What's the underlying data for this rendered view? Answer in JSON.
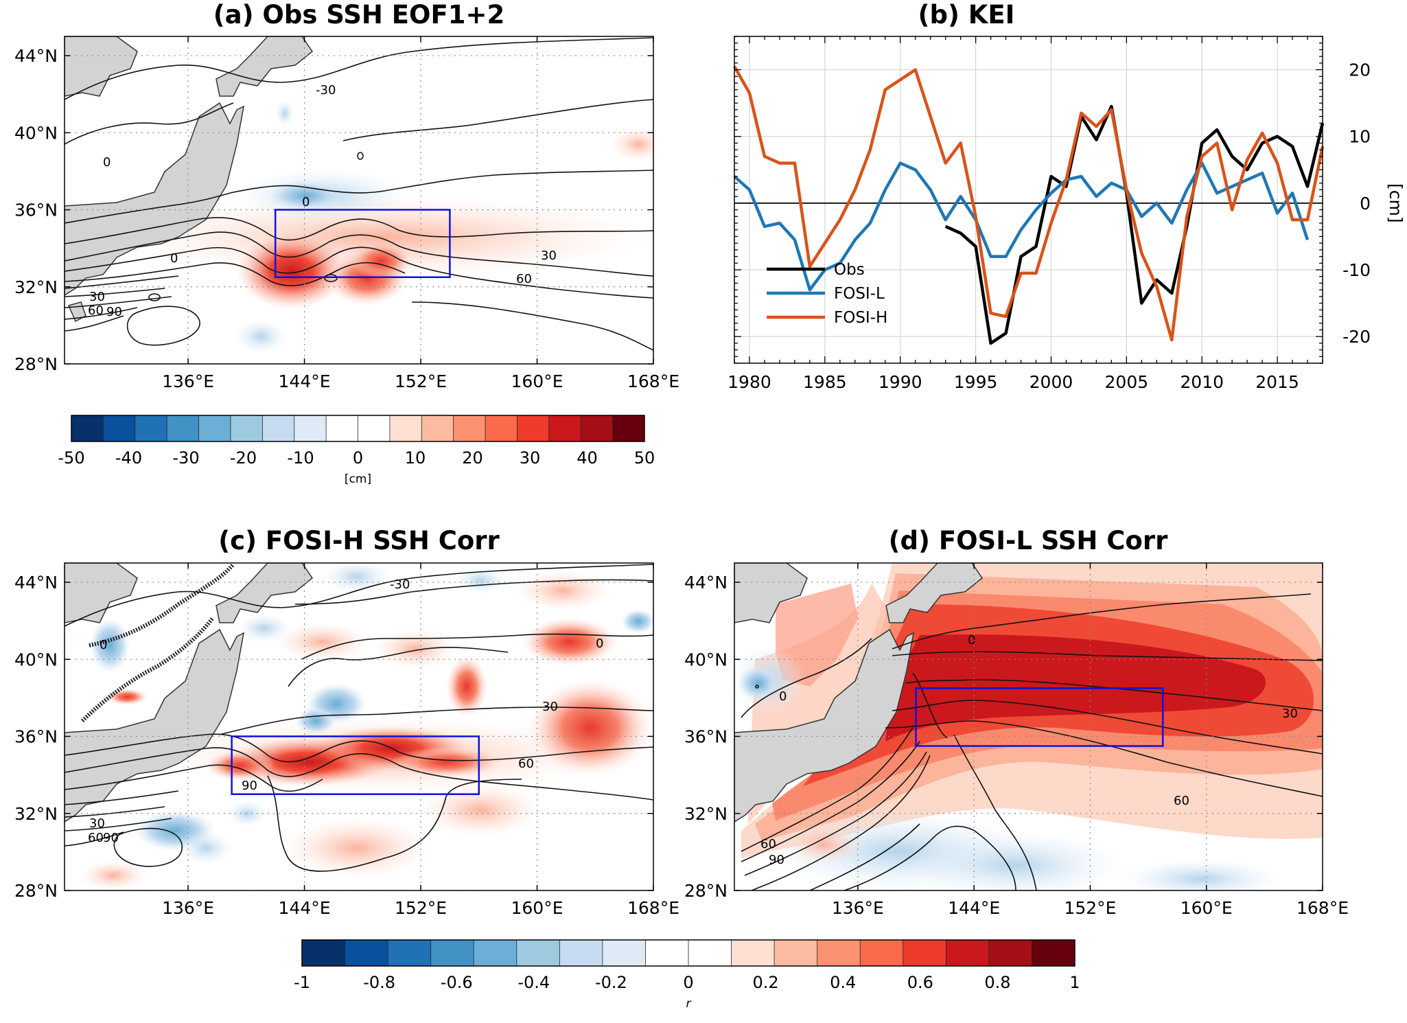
{
  "chart_data": [
    {
      "id": "a",
      "type": "heatmap",
      "title": "(a) Obs SSH EOF1+2",
      "x_ticks": [
        "136°E",
        "144°E",
        "152°E",
        "160°E",
        "168°E"
      ],
      "x_tick_values": [
        136,
        144,
        152,
        160,
        168
      ],
      "y_ticks": [
        "44°N",
        "40°N",
        "36°N",
        "32°N",
        "28°N"
      ],
      "y_tick_values": [
        44,
        40,
        36,
        32,
        28
      ],
      "xlim": [
        127.5,
        168
      ],
      "ylim": [
        28,
        45
      ],
      "contour_labels": [
        "-30",
        "0",
        "0",
        "0",
        "30",
        "60",
        "30",
        "60",
        "90"
      ],
      "box": {
        "lon": [
          142,
          154
        ],
        "lat": [
          32.5,
          36
        ]
      },
      "colorbar": {
        "ticks": [
          "-50",
          "-40",
          "-30",
          "-20",
          "-10",
          "0",
          "10",
          "20",
          "30",
          "40",
          "50"
        ],
        "label": "[cm]",
        "range": [
          -50,
          50
        ]
      }
    },
    {
      "id": "b",
      "type": "line",
      "title": "(b) KEI",
      "x_ticks": [
        "1980",
        "1985",
        "1990",
        "1995",
        "2000",
        "2005",
        "2010",
        "2015"
      ],
      "y_ticks": [
        "20",
        "10",
        "0",
        "-10",
        "-20"
      ],
      "ylabel": "[cm]",
      "xlim": [
        1979,
        2018
      ],
      "ylim": [
        -24,
        25
      ],
      "grid": true,
      "legend_position": "lower-left",
      "series": [
        {
          "name": "Obs",
          "color": "#000000",
          "x": [
            1993,
            1994,
            1995,
            1996,
            1997,
            1998,
            1999,
            2000,
            2001,
            2002,
            2003,
            2004,
            2005,
            2006,
            2007,
            2008,
            2009,
            2010,
            2011,
            2012,
            2013,
            2014,
            2015,
            2016,
            2017,
            2018
          ],
          "y": [
            -3.5,
            -4.5,
            -6.5,
            -21,
            -19.5,
            -8,
            -6.5,
            4,
            2.5,
            13,
            9.5,
            14.5,
            1.5,
            -15,
            -11.5,
            -13.5,
            -3.5,
            9,
            11,
            7,
            5,
            9,
            10,
            8.5,
            2.5,
            12
          ]
        },
        {
          "name": "FOSI-L",
          "color": "#1f77b4",
          "x": [
            1979,
            1980,
            1981,
            1982,
            1983,
            1984,
            1985,
            1986,
            1987,
            1988,
            1989,
            1990,
            1991,
            1992,
            1993,
            1994,
            1995,
            1996,
            1997,
            1998,
            1999,
            2000,
            2001,
            2002,
            2003,
            2004,
            2005,
            2006,
            2007,
            2008,
            2009,
            2010,
            2011,
            2012,
            2013,
            2014,
            2015,
            2016,
            2017
          ],
          "y": [
            4,
            2,
            -3.5,
            -3,
            -5.5,
            -13,
            -10,
            -9,
            -5.5,
            -3,
            2,
            6,
            5,
            2,
            -2.5,
            1,
            -2.5,
            -8,
            -8,
            -4,
            -1,
            1.5,
            3.5,
            4,
            1,
            3,
            2,
            -2,
            0,
            -3,
            2,
            6,
            1.5,
            2.5,
            3.5,
            4.5,
            -1.5,
            1.5,
            -5.5
          ]
        },
        {
          "name": "FOSI-H",
          "color": "#d95319",
          "x": [
            1979,
            1980,
            1981,
            1982,
            1983,
            1984,
            1985,
            1986,
            1987,
            1988,
            1989,
            1990,
            1991,
            1992,
            1993,
            1994,
            1995,
            1996,
            1997,
            1998,
            1999,
            2000,
            2001,
            2002,
            2003,
            2004,
            2005,
            2006,
            2007,
            2008,
            2009,
            2010,
            2011,
            2012,
            2013,
            2014,
            2015,
            2016,
            2017,
            2018
          ],
          "y": [
            20.5,
            16.5,
            7,
            6,
            6,
            -9.5,
            -6,
            -2.5,
            2,
            8,
            17,
            18.5,
            20,
            13,
            6,
            9,
            -2,
            -16.5,
            -17,
            -10.5,
            -10.5,
            -3,
            3.5,
            13.5,
            11.5,
            14,
            2,
            -7.5,
            -12.5,
            -20.5,
            -2,
            7,
            9,
            -1,
            6.5,
            10.5,
            6,
            -2.5,
            -2.5,
            8.5
          ]
        }
      ]
    },
    {
      "id": "c",
      "type": "heatmap",
      "title": "(c) FOSI-H SSH Corr",
      "x_ticks": [
        "136°E",
        "144°E",
        "152°E",
        "160°E",
        "168°E"
      ],
      "x_tick_values": [
        136,
        144,
        152,
        160,
        168
      ],
      "y_ticks": [
        "44°N",
        "40°N",
        "36°N",
        "32°N",
        "28°N"
      ],
      "y_tick_values": [
        44,
        40,
        36,
        32,
        28
      ],
      "xlim": [
        127.5,
        168
      ],
      "ylim": [
        28,
        45
      ],
      "contour_labels": [
        "-30",
        "0",
        "0",
        "30",
        "60",
        "90",
        "30",
        "60",
        "90"
      ],
      "box": {
        "lon": [
          139,
          156
        ],
        "lat": [
          33,
          36
        ]
      }
    },
    {
      "id": "d",
      "type": "heatmap",
      "title": "(d) FOSI-L SSH Corr",
      "x_ticks": [
        "136°E",
        "144°E",
        "152°E",
        "160°E",
        "168°E"
      ],
      "x_tick_values": [
        136,
        144,
        152,
        160,
        168
      ],
      "y_ticks": [
        "44°N",
        "40°N",
        "36°N",
        "32°N",
        "28°N"
      ],
      "y_tick_values": [
        44,
        40,
        36,
        32,
        28
      ],
      "xlim": [
        127.5,
        168
      ],
      "ylim": [
        28,
        45
      ],
      "contour_labels": [
        "0",
        "0",
        "30",
        "60",
        "60",
        "90"
      ],
      "box": {
        "lon": [
          140,
          157
        ],
        "lat": [
          35.5,
          38.5
        ]
      }
    },
    {
      "id": "cb_r",
      "type": "colorbar",
      "ticks": [
        "-1",
        "-0.8",
        "-0.6",
        "-0.4",
        "-0.2",
        "0",
        "0.2",
        "0.4",
        "0.6",
        "0.8",
        "1"
      ],
      "label": "r",
      "range": [
        -1,
        1
      ]
    }
  ],
  "colors": {
    "land": "#d3d3d3",
    "box": "#1010e0",
    "contour": "#111111",
    "diverging": [
      "#08306b",
      "#08519c",
      "#2171b5",
      "#4292c6",
      "#6baed6",
      "#9ecae1",
      "#c6dbef",
      "#deebf7",
      "#ffffff",
      "#ffffff",
      "#fee0d2",
      "#fcbba1",
      "#fc9272",
      "#fb6a4a",
      "#ef3b2c",
      "#cb181d",
      "#a50f15",
      "#67000d"
    ]
  }
}
